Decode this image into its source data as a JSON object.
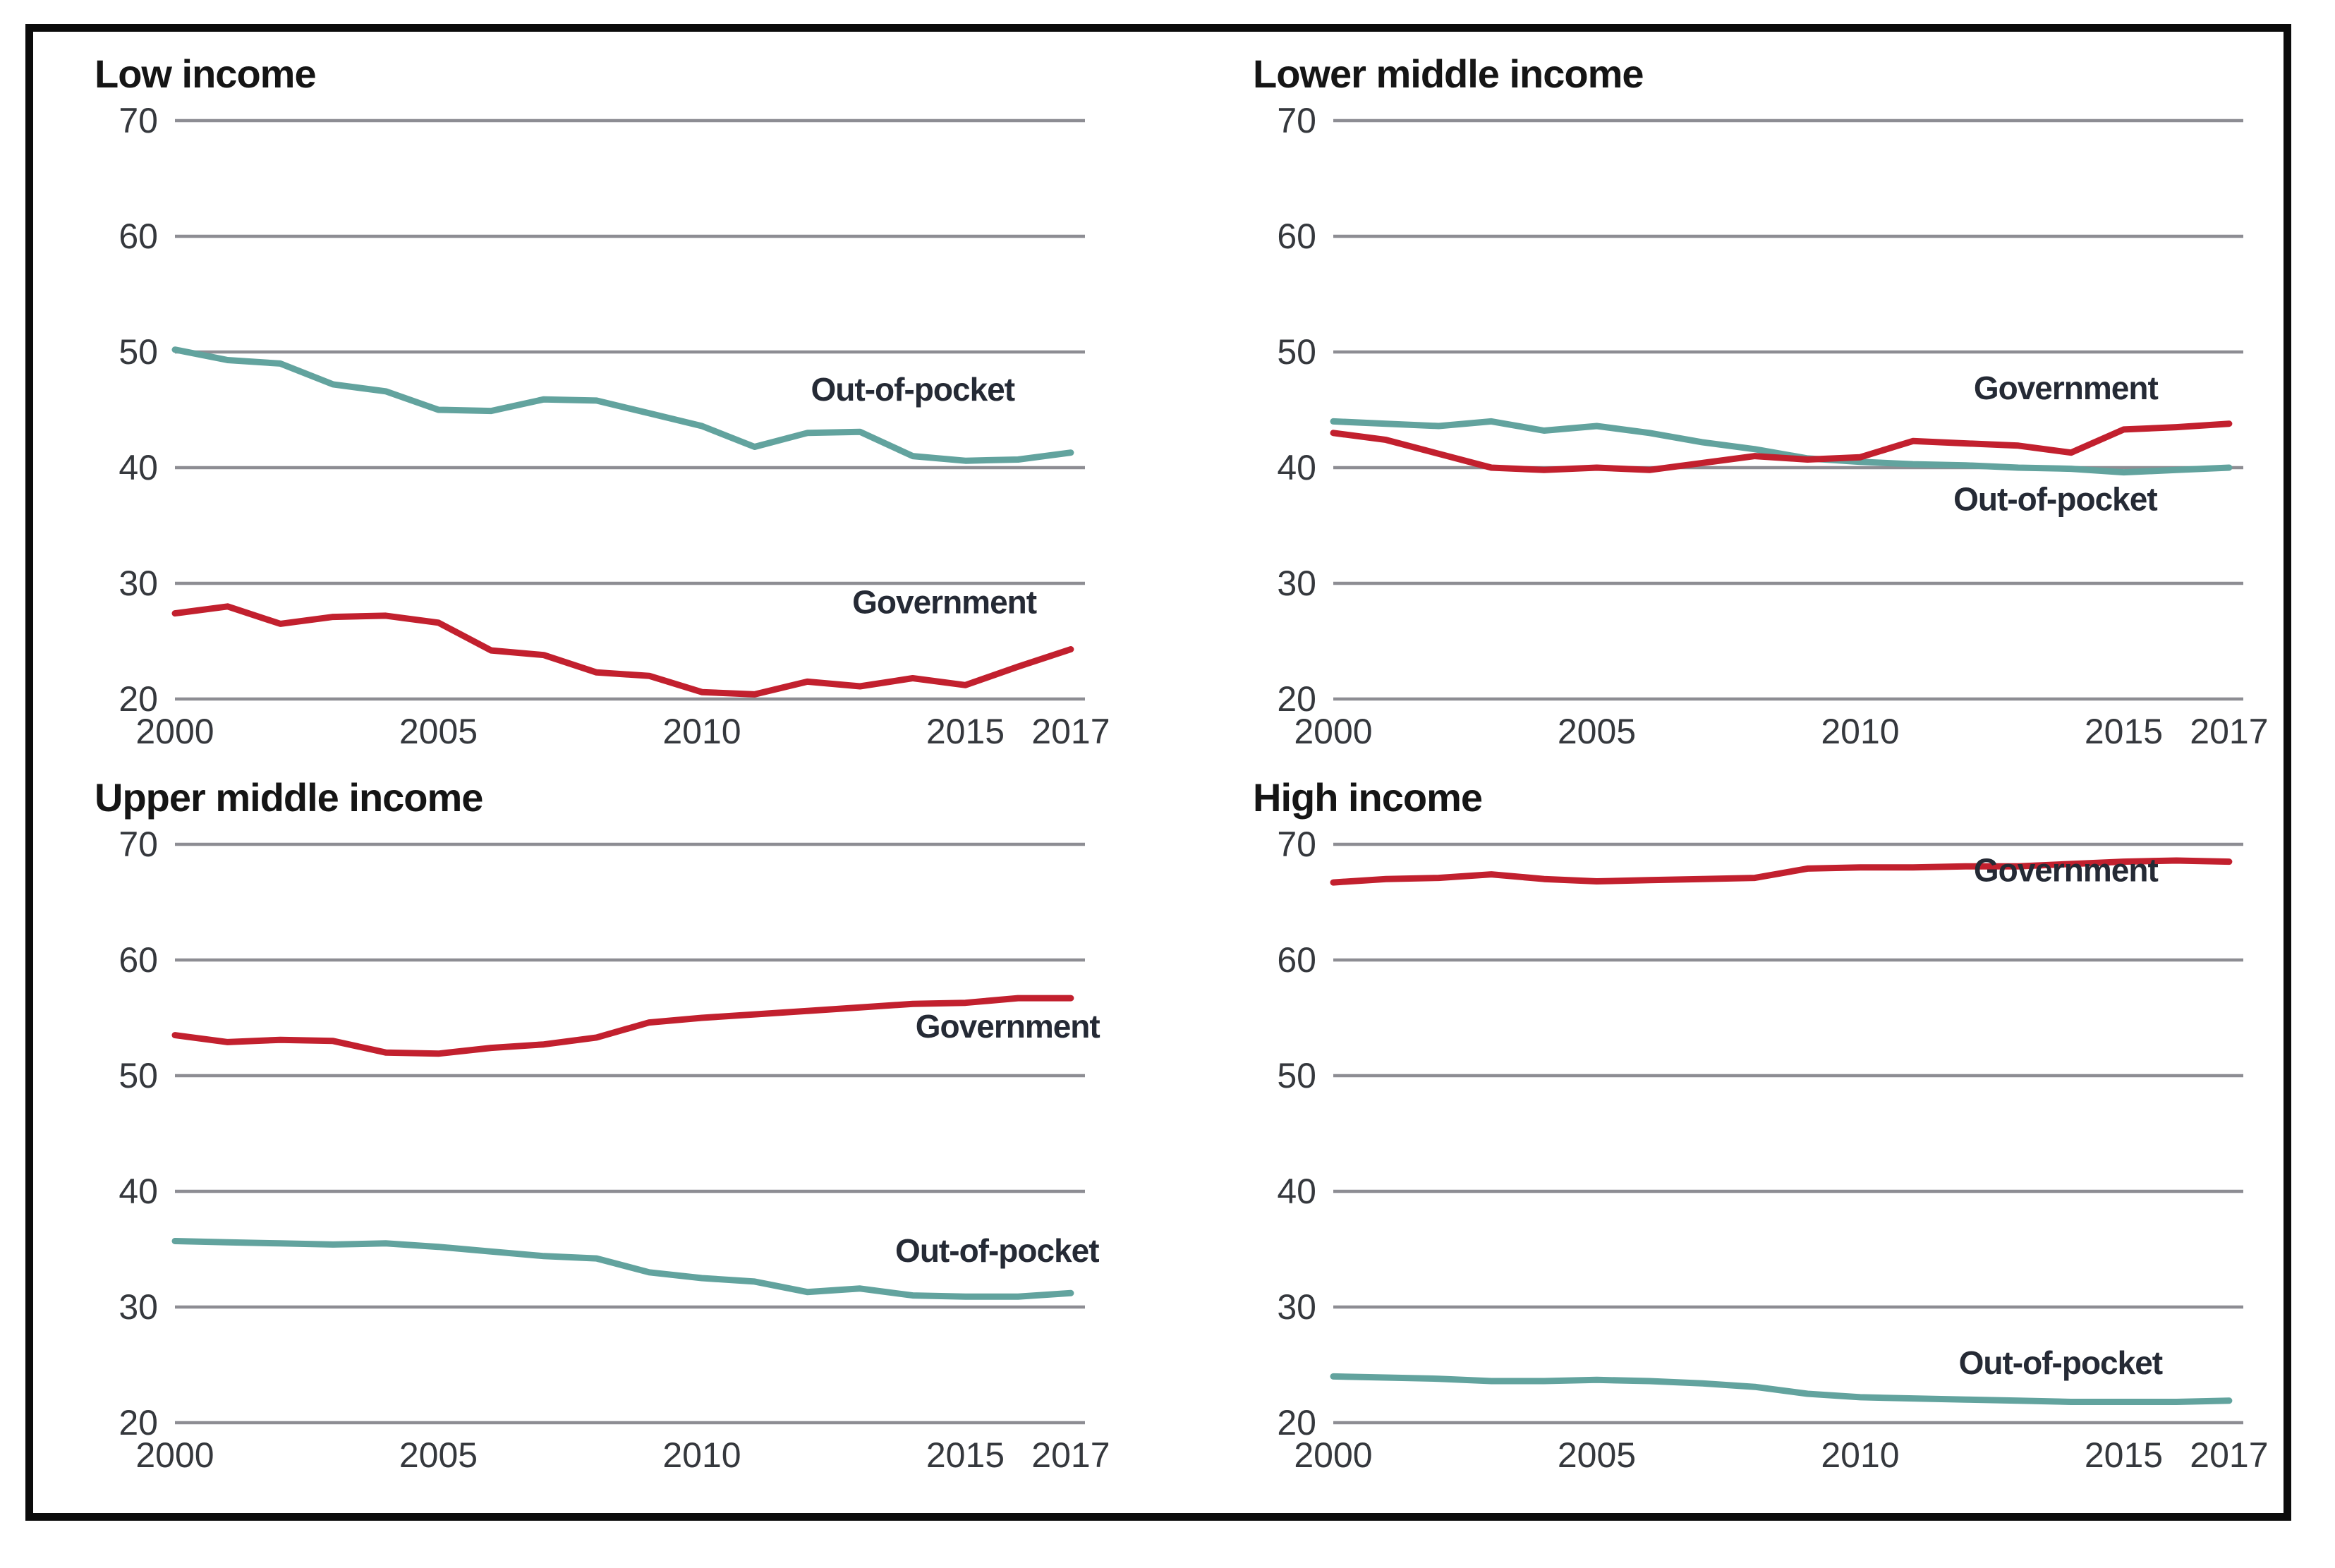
{
  "figure": {
    "kind": "small-multiples-line-charts",
    "panels_grid": "2x2",
    "palette": {
      "government": "#c2202e",
      "out_of_pocket": "#62a39e",
      "gridline": "#8d8d93",
      "tick_text": "#35383d",
      "title_text": "#151515",
      "series_label_text": "#252a35",
      "frame_border": "#0b0b0b",
      "background": "#ffffff"
    }
  },
  "chart_data": [
    {
      "type": "line",
      "title": "Low income",
      "x": [
        2000,
        2001,
        2002,
        2003,
        2004,
        2005,
        2006,
        2007,
        2008,
        2009,
        2010,
        2011,
        2012,
        2013,
        2014,
        2015,
        2016,
        2017
      ],
      "ylim": [
        20,
        70
      ],
      "yticks": [
        70,
        60,
        50,
        40,
        30,
        20
      ],
      "xticks": [
        {
          "label": "2000",
          "year": 2000
        },
        {
          "label": "2005",
          "year": 2005
        },
        {
          "label": "2010",
          "year": 2010
        },
        {
          "label": "2015",
          "year": 2015
        },
        {
          "label": "2017",
          "year": 2017
        }
      ],
      "grid": "horizontal-only",
      "legend": "inline-labels",
      "series": [
        {
          "name": "Out-of-pocket",
          "color": "out_of_pocket",
          "values": [
            50.2,
            49.3,
            49.0,
            47.2,
            46.6,
            45.0,
            44.9,
            45.9,
            45.8,
            44.7,
            43.6,
            41.8,
            43.0,
            43.1,
            41.0,
            40.6,
            40.7,
            41.3
          ],
          "label_anchor": {
            "year": 2014.0,
            "value": 45.8
          }
        },
        {
          "name": "Government",
          "color": "government",
          "values": [
            27.4,
            28.0,
            26.5,
            27.1,
            27.2,
            26.6,
            24.2,
            23.8,
            22.3,
            22.0,
            20.6,
            20.4,
            21.5,
            21.1,
            21.8,
            21.2,
            22.8,
            24.3
          ],
          "label_anchor": {
            "year": 2014.6,
            "value": 27.4
          }
        }
      ]
    },
    {
      "type": "line",
      "title": "Lower middle income",
      "x": [
        2000,
        2001,
        2002,
        2003,
        2004,
        2005,
        2006,
        2007,
        2008,
        2009,
        2010,
        2011,
        2012,
        2013,
        2014,
        2015,
        2016,
        2017
      ],
      "ylim": [
        20,
        70
      ],
      "yticks": [
        70,
        60,
        50,
        40,
        30,
        20
      ],
      "xticks": [
        {
          "label": "2000",
          "year": 2000
        },
        {
          "label": "2005",
          "year": 2005
        },
        {
          "label": "2010",
          "year": 2010
        },
        {
          "label": "2015",
          "year": 2015
        },
        {
          "label": "2017",
          "year": 2017
        }
      ],
      "grid": "horizontal-only",
      "legend": "inline-labels",
      "series": [
        {
          "name": "Out-of-pocket",
          "color": "out_of_pocket",
          "values": [
            44.0,
            43.8,
            43.6,
            44.0,
            43.2,
            43.6,
            43.0,
            42.2,
            41.6,
            40.8,
            40.5,
            40.3,
            40.2,
            40.0,
            39.9,
            39.6,
            39.8,
            40.0
          ],
          "label_anchor": {
            "year": 2013.7,
            "value": 36.3
          }
        },
        {
          "name": "Government",
          "color": "government",
          "values": [
            43.0,
            42.4,
            41.2,
            40.0,
            39.8,
            40.0,
            39.8,
            40.4,
            41.0,
            40.7,
            40.9,
            42.3,
            42.1,
            41.9,
            41.3,
            43.3,
            43.5,
            43.8
          ],
          "label_anchor": {
            "year": 2013.9,
            "value": 45.9
          }
        }
      ]
    },
    {
      "type": "line",
      "title": "Upper middle income",
      "x": [
        2000,
        2001,
        2002,
        2003,
        2004,
        2005,
        2006,
        2007,
        2008,
        2009,
        2010,
        2011,
        2012,
        2013,
        2014,
        2015,
        2016,
        2017
      ],
      "ylim": [
        20,
        70
      ],
      "yticks": [
        70,
        60,
        50,
        40,
        30,
        20
      ],
      "xticks": [
        {
          "label": "2000",
          "year": 2000
        },
        {
          "label": "2005",
          "year": 2005
        },
        {
          "label": "2010",
          "year": 2010
        },
        {
          "label": "2015",
          "year": 2015
        },
        {
          "label": "2017",
          "year": 2017
        }
      ],
      "grid": "horizontal-only",
      "legend": "inline-labels",
      "series": [
        {
          "name": "Out-of-pocket",
          "color": "out_of_pocket",
          "values": [
            35.7,
            35.6,
            35.5,
            35.4,
            35.5,
            35.2,
            34.8,
            34.4,
            34.2,
            33.0,
            32.5,
            32.2,
            31.3,
            31.6,
            31.0,
            30.9,
            30.9,
            31.2
          ],
          "label_anchor": {
            "year": 2015.6,
            "value": 33.9
          }
        },
        {
          "name": "Government",
          "color": "government",
          "values": [
            53.5,
            52.9,
            53.1,
            53.0,
            52.0,
            51.9,
            52.4,
            52.7,
            53.3,
            54.6,
            55.0,
            55.3,
            55.6,
            55.9,
            56.2,
            56.3,
            56.7,
            56.7
          ],
          "label_anchor": {
            "year": 2015.8,
            "value": 53.3
          }
        }
      ]
    },
    {
      "type": "line",
      "title": "High income",
      "x": [
        2000,
        2001,
        2002,
        2003,
        2004,
        2005,
        2006,
        2007,
        2008,
        2009,
        2010,
        2011,
        2012,
        2013,
        2014,
        2015,
        2016,
        2017
      ],
      "ylim": [
        20,
        70
      ],
      "yticks": [
        70,
        60,
        50,
        40,
        30,
        20
      ],
      "xticks": [
        {
          "label": "2000",
          "year": 2000
        },
        {
          "label": "2005",
          "year": 2005
        },
        {
          "label": "2010",
          "year": 2010
        },
        {
          "label": "2015",
          "year": 2015
        },
        {
          "label": "2017",
          "year": 2017
        }
      ],
      "grid": "horizontal-only",
      "legend": "inline-labels",
      "series": [
        {
          "name": "Out-of-pocket",
          "color": "out_of_pocket",
          "values": [
            24.0,
            23.9,
            23.8,
            23.6,
            23.6,
            23.7,
            23.6,
            23.4,
            23.1,
            22.5,
            22.2,
            22.1,
            22.0,
            21.9,
            21.8,
            21.8,
            21.8,
            21.9
          ],
          "label_anchor": {
            "year": 2013.8,
            "value": 24.2
          }
        },
        {
          "name": "Government",
          "color": "government",
          "values": [
            66.7,
            67.0,
            67.1,
            67.4,
            67.0,
            66.8,
            66.9,
            67.0,
            67.1,
            67.9,
            68.0,
            68.0,
            68.1,
            68.1,
            68.3,
            68.5,
            68.6,
            68.5
          ],
          "label_anchor": {
            "year": 2013.9,
            "value": 66.8
          }
        }
      ]
    }
  ]
}
